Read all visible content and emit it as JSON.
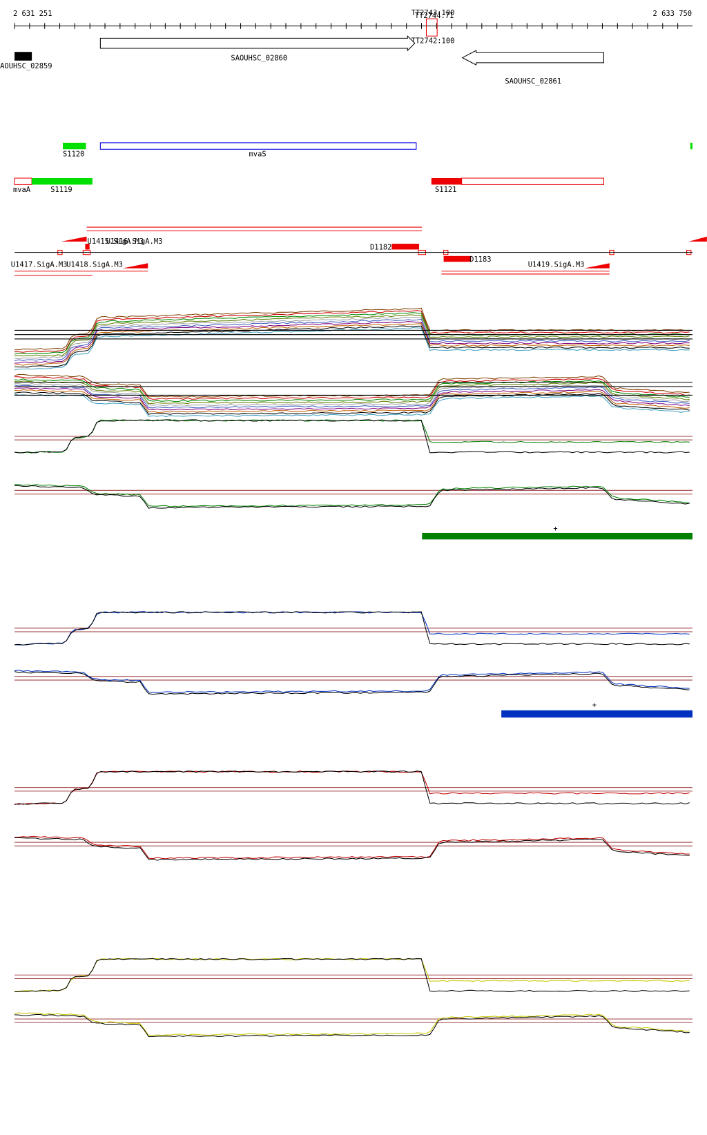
{
  "axis": {
    "start": "2 631 251",
    "end": "2 633 750"
  },
  "features": {
    "tt2743": "TT2743:100",
    "tt2744": "TT2744:71",
    "tt2742": "TT2742:100"
  },
  "genes": [
    "AOUHSC_02859",
    "SAOUHSC_02860",
    "SAOUHSC_02861"
  ],
  "annotations": {
    "s1120": "S1120",
    "mvas": "mvaS",
    "mvaa": "mvaA",
    "s1119": "S1119",
    "s1121": "S1121"
  },
  "promoters": {
    "u1415": "U1415.SigA.M3",
    "u1416": "U1416.SigA.M3",
    "d1182": "D1182",
    "d1183": "D1183",
    "u1417": "U1417.SigA.M3",
    "u1418": "U1418.SigA.M3",
    "u1419": "U1419.SigA.M3"
  },
  "strand_marks": [
    "+",
    "+"
  ]
}
